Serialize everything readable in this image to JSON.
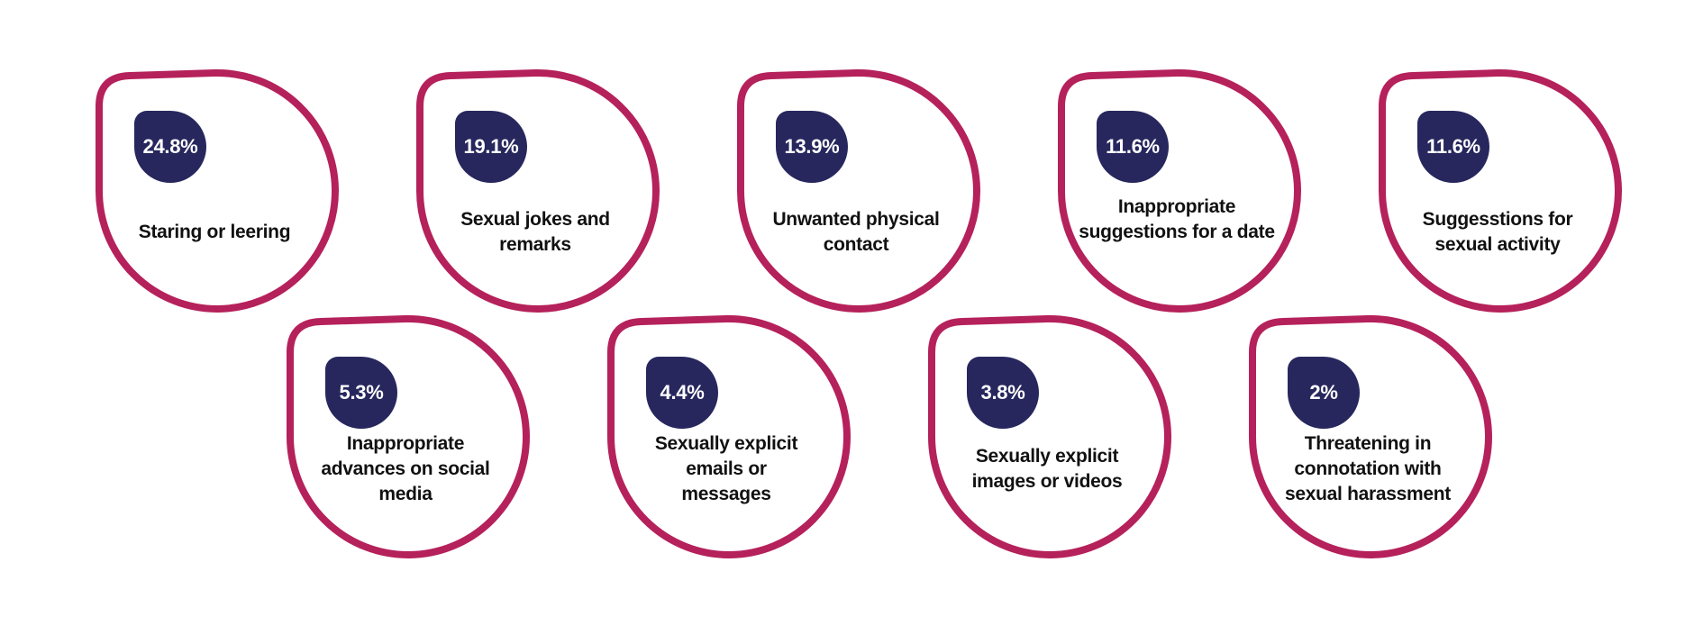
{
  "colors": {
    "ring": "#b5215b",
    "badge": "#27275e",
    "badge_text": "#ffffff",
    "label_text": "#111111",
    "background": "#ffffff"
  },
  "items": [
    {
      "percent": "24.8%",
      "label": "Staring or leering"
    },
    {
      "percent": "19.1%",
      "label": "Sexual jokes and remarks"
    },
    {
      "percent": "13.9%",
      "label": "Unwanted physical contact"
    },
    {
      "percent": "11.6%",
      "label": "Inappropriate suggestions for a date"
    },
    {
      "percent": "11.6%",
      "label": "Suggesstions for sexual activity"
    },
    {
      "percent": "5.3%",
      "label": "Inappropriate advances on social media"
    },
    {
      "percent": "4.4%",
      "label": "Sexually explicit emails or messages"
    },
    {
      "percent": "3.8%",
      "label": "Sexually explicit images or videos"
    },
    {
      "percent": "2%",
      "label": "Threatening in connotation with sexual harassment"
    }
  ]
}
